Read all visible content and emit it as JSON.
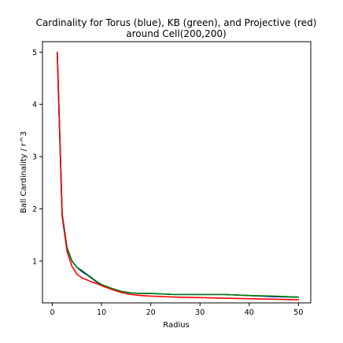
{
  "chart_data": {
    "type": "line",
    "title_lines": [
      "Cardinality for Torus (blue), KB (green), and Projective (red)",
      "around Cell(200,200)"
    ],
    "xlabel": "Radius",
    "ylabel": "Ball Cardinality / r^3",
    "xlim": [
      -2,
      52.5
    ],
    "ylim": [
      0.2,
      5.2
    ],
    "x_ticks": [
      0,
      10,
      20,
      30,
      40,
      50
    ],
    "y_ticks": [
      1,
      2,
      3,
      4,
      5
    ],
    "grid": false,
    "legend": "none",
    "series": [
      {
        "color": "#0000ff",
        "x": [
          1,
          2,
          3,
          4,
          5,
          6,
          7,
          8,
          9,
          10,
          12,
          14,
          16,
          18,
          20,
          25,
          30,
          35,
          40,
          45,
          50
        ],
        "y": [
          5.0,
          1.9,
          1.25,
          1.0,
          0.88,
          0.8,
          0.74,
          0.67,
          0.6,
          0.55,
          0.47,
          0.42,
          0.39,
          0.38,
          0.38,
          0.36,
          0.36,
          0.36,
          0.34,
          0.32,
          0.31
        ]
      },
      {
        "color": "#008000",
        "x": [
          1,
          2,
          3,
          4,
          5,
          6,
          7,
          8,
          9,
          10,
          12,
          14,
          16,
          18,
          20,
          25,
          30,
          35,
          40,
          45,
          50
        ],
        "y": [
          5.0,
          1.88,
          1.25,
          1.0,
          0.88,
          0.82,
          0.75,
          0.68,
          0.61,
          0.55,
          0.48,
          0.42,
          0.39,
          0.38,
          0.38,
          0.36,
          0.36,
          0.36,
          0.34,
          0.33,
          0.31
        ]
      },
      {
        "color": "#ff0000",
        "x": [
          1,
          2,
          3,
          4,
          5,
          6,
          7,
          8,
          9,
          10,
          12,
          14,
          16,
          18,
          20,
          25,
          30,
          35,
          40,
          45,
          50
        ],
        "y": [
          5.0,
          1.85,
          1.18,
          0.9,
          0.75,
          0.68,
          0.64,
          0.6,
          0.57,
          0.53,
          0.46,
          0.4,
          0.36,
          0.34,
          0.33,
          0.31,
          0.3,
          0.29,
          0.28,
          0.27,
          0.26
        ]
      }
    ]
  }
}
